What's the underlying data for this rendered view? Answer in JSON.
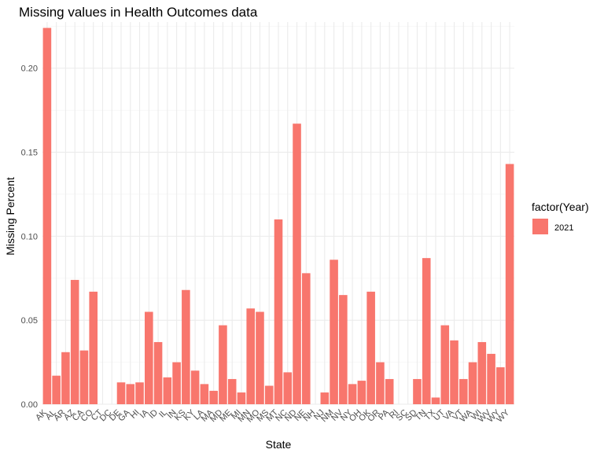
{
  "chart_data": {
    "type": "bar",
    "title": "Missing values in Health Outcomes data",
    "xlabel": "State",
    "ylabel": "Missing Percent",
    "ylim": [
      0,
      0.2275
    ],
    "y_ticks": [
      "0.00",
      "0.05",
      "0.10",
      "0.15",
      "0.20"
    ],
    "y_tick_values": [
      0,
      0.05,
      0.1,
      0.15,
      0.2
    ],
    "grid": true,
    "legend_position": "right",
    "legend_title": "factor(Year)",
    "series": [
      {
        "name": "2021",
        "color": "#f8766d",
        "values": [
          0.224,
          0.017,
          0.031,
          0.074,
          0.032,
          0.067,
          0.0,
          0.0,
          0.013,
          0.012,
          0.013,
          0.055,
          0.037,
          0.016,
          0.025,
          0.068,
          0.02,
          0.012,
          0.008,
          0.047,
          0.015,
          0.007,
          0.057,
          0.055,
          0.011,
          0.11,
          0.019,
          0.167,
          0.078,
          0.0,
          0.007,
          0.086,
          0.065,
          0.012,
          0.014,
          0.067,
          0.025,
          0.015,
          0.0,
          0.0,
          0.015,
          0.087,
          0.004,
          0.047,
          0.038,
          0.015,
          0.025,
          0.037,
          0.03,
          0.022,
          0.143
        ]
      }
    ],
    "categories": [
      "AK",
      "AL",
      "AR",
      "AZ",
      "CA",
      "CO",
      "CT",
      "DC",
      "DE",
      "GA",
      "HI",
      "IA",
      "ID",
      "IL",
      "IN",
      "KS",
      "KY",
      "LA",
      "MA",
      "MD",
      "ME",
      "MI",
      "MN",
      "MO",
      "MS",
      "MT",
      "NC",
      "ND",
      "NE",
      "NH",
      "NJ",
      "NM",
      "NV",
      "NY",
      "OH",
      "OK",
      "OR",
      "PA",
      "RI",
      "SC",
      "SD",
      "TN",
      "TX",
      "UT",
      "VA",
      "VT",
      "WA",
      "WI",
      "WV",
      "WY",
      "WY"
    ]
  }
}
